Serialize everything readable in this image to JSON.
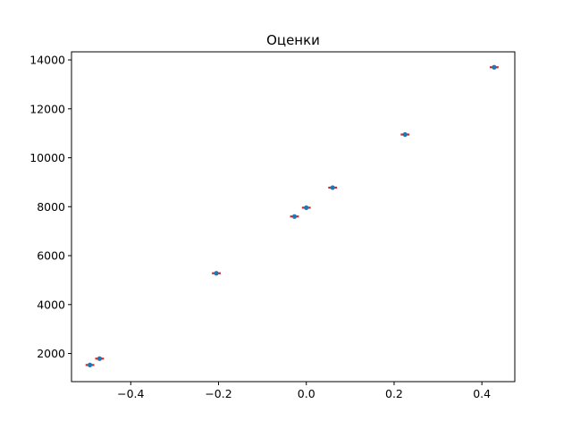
{
  "chart_data": {
    "type": "scatter",
    "title": "Оценки",
    "xlabel": "",
    "ylabel": "",
    "xlim": [
      -0.535,
      0.475
    ],
    "ylim": [
      850,
      14330
    ],
    "grid": false,
    "legend": "none",
    "x_ticks": [
      -0.4,
      -0.2,
      0.0,
      0.2,
      0.4
    ],
    "x_tick_labels": [
      "−0.4",
      "−0.2",
      "0.0",
      "0.2",
      "0.4"
    ],
    "y_ticks": [
      2000,
      4000,
      6000,
      8000,
      10000,
      12000,
      14000
    ],
    "y_tick_labels": [
      "2000",
      "4000",
      "6000",
      "8000",
      "10000",
      "12000",
      "14000"
    ],
    "series": [
      {
        "point_color": "#1f77b4",
        "errorbar_color": "#d62728",
        "x": [
          -0.493,
          -0.471,
          -0.205,
          -0.027,
          0.0,
          0.06,
          0.225,
          0.428
        ],
        "y": [
          1530,
          1790,
          5280,
          7600,
          7960,
          8780,
          10950,
          13700
        ],
        "xerr": [
          0.01,
          0.01,
          0.01,
          0.01,
          0.01,
          0.01,
          0.01,
          0.01
        ],
        "yerr": [
          60,
          60,
          60,
          60,
          60,
          60,
          60,
          60
        ]
      }
    ]
  }
}
